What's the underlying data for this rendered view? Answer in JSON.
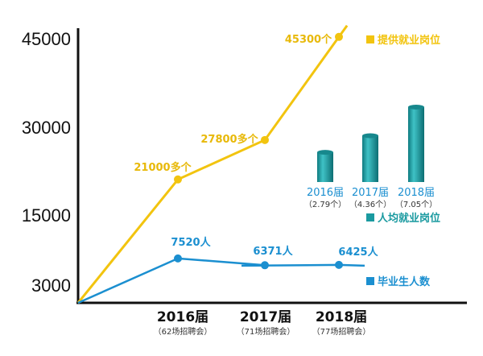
{
  "chart_data": {
    "type": "line",
    "yticks": [
      "45000",
      "30000",
      "15000",
      "3000"
    ],
    "categories": [
      {
        "label": "2016届",
        "sub": "（62场招聘会）"
      },
      {
        "label": "2017届",
        "sub": "（71场招聘会）"
      },
      {
        "label": "2018届",
        "sub": "（77场招聘会）"
      }
    ],
    "series": [
      {
        "name": "提供就业岗位",
        "color": "#f2c40f",
        "values": [
          21000,
          27800,
          45300
        ],
        "labels": [
          "21000多个",
          "27800多个",
          "45300个"
        ]
      },
      {
        "name": "毕业生人数",
        "color": "#1b8fd0",
        "values": [
          7520,
          6371,
          6425
        ],
        "labels": [
          "7520人",
          "6371人",
          "6425人"
        ]
      }
    ],
    "bar_inset": {
      "name": "人均就业岗位",
      "color": "#1a9aa0",
      "categories": [
        "2016届",
        "2017届",
        "2018届"
      ],
      "values": [
        2.79,
        4.36,
        7.05
      ],
      "labels": [
        "（2.79个）",
        "（4.36个）",
        "（7.05个）"
      ]
    }
  }
}
